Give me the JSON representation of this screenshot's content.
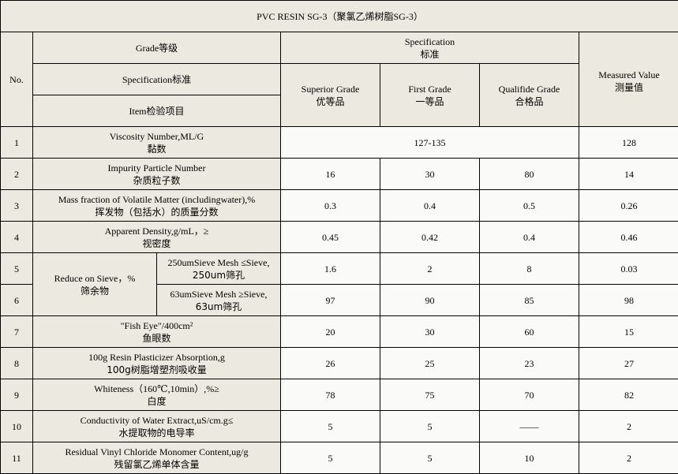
{
  "title": "PVC RESIN SG-3（聚氯乙烯树脂SG-3）",
  "header": {
    "no": "No.",
    "grade": "Grade等级",
    "specification_en": "Specification",
    "specification_zh": "标准",
    "specification_row": "Specification标准",
    "item": "Item检验项目",
    "superior_en": "Superior Grade",
    "superior_zh": "优等品",
    "first_en": "First Grade",
    "first_zh": "一等品",
    "qualified_en": "Qualifide Grade",
    "qualified_zh": "合格品",
    "measured_en": "Measured Value",
    "measured_zh": "测量值"
  },
  "rows": [
    {
      "no": "1",
      "en": "Viscosity Number,ML/G",
      "zh": "黏数",
      "merged": "127-135",
      "measured": "128"
    },
    {
      "no": "2",
      "en": "Impurity Particle Number",
      "zh": "杂质粒子数",
      "superior": "16",
      "first": "30",
      "qualified": "80",
      "measured": "14"
    },
    {
      "no": "3",
      "en": "Mass fraction of Volatile Matter (includingwater),%",
      "zh": "挥发物（包括水）的质量分数",
      "superior": "0.3",
      "first": "0.4",
      "qualified": "0.5",
      "measured": "0.26"
    },
    {
      "no": "4",
      "en": "Apparent Density,g/mL，≥",
      "zh": "视密度",
      "superior": "0.45",
      "first": "0.42",
      "qualified": "0.4",
      "measured": "0.46"
    },
    {
      "no": "5",
      "group_en": "Reduce on Sieve，%",
      "group_zh": "筛余物",
      "en": "250umSieve Mesh ≤Sieve,",
      "zh": "250um筛孔",
      "superior": "1.6",
      "first": "2",
      "qualified": "8",
      "measured": "0.03"
    },
    {
      "no": "6",
      "en": "63umSieve Mesh ≥Sieve,",
      "zh": "63um筛孔",
      "superior": "97",
      "first": "90",
      "qualified": "85",
      "measured": "98"
    },
    {
      "no": "7",
      "en": "\"Fish Eye\"/400cm²",
      "zh": "鱼眼数",
      "superior": "20",
      "first": "30",
      "qualified": "60",
      "measured": "15"
    },
    {
      "no": "8",
      "en": "100g Resin Plasticizer Absorption,g",
      "zh": "100g树脂增塑剂吸收量",
      "superior": "26",
      "first": "25",
      "qualified": "23",
      "measured": "27"
    },
    {
      "no": "9",
      "en": "Whiteness（160℃,10min）,%≥",
      "zh": "白度",
      "superior": "78",
      "first": "75",
      "qualified": "70",
      "measured": "82"
    },
    {
      "no": "10",
      "en": "Conductivity of Water Extract,uS/cm.g≤",
      "zh": "水提取物的电导率",
      "superior": "5",
      "first": "5",
      "qualified": "——",
      "measured": "2"
    },
    {
      "no": "11",
      "en": "Residual Vinyl Chloride Monomer Content,ug/g",
      "zh": "残留氯乙烯单体含量",
      "superior": "5",
      "first": "5",
      "qualified": "10",
      "measured": "2"
    }
  ]
}
